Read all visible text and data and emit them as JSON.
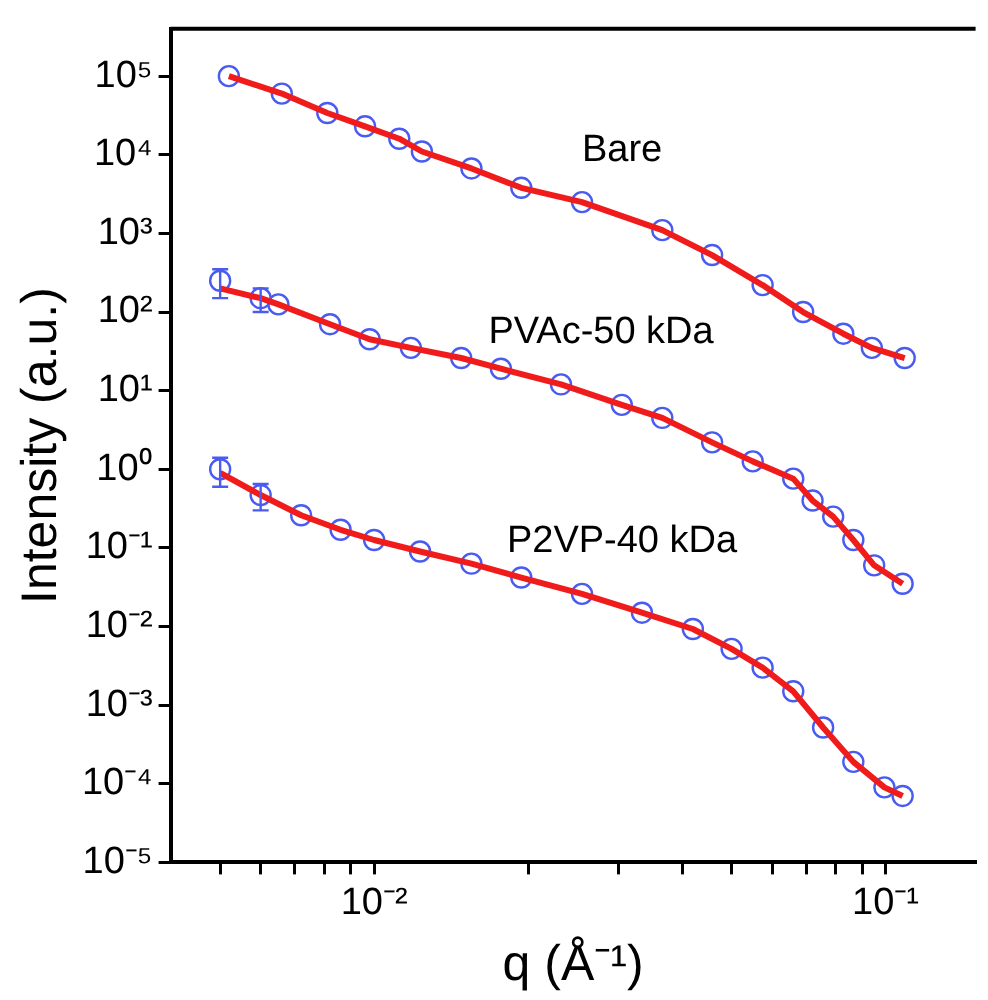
{
  "chart_data": {
    "type": "scatter",
    "xlabel": "q (Å⁻¹)",
    "ylabel": "Intensity (a.u.)",
    "log": "xy",
    "grid": false,
    "legend": false,
    "marker": "circle",
    "xlim": [
      0.004,
      0.15
    ],
    "ylim": [
      1e-05,
      400000
    ],
    "xticks": [
      {
        "value": 0.005,
        "label": null
      },
      {
        "value": 0.006,
        "label": null
      },
      {
        "value": 0.007,
        "label": null
      },
      {
        "value": 0.008,
        "label": null
      },
      {
        "value": 0.009,
        "label": null
      },
      {
        "value": 0.01,
        "label": "10⁻²"
      },
      {
        "value": 0.02,
        "label": null
      },
      {
        "value": 0.03,
        "label": null
      },
      {
        "value": 0.04,
        "label": null
      },
      {
        "value": 0.05,
        "label": null
      },
      {
        "value": 0.06,
        "label": null
      },
      {
        "value": 0.07,
        "label": null
      },
      {
        "value": 0.08,
        "label": null
      },
      {
        "value": 0.09,
        "label": null
      },
      {
        "value": 0.1,
        "label": "10⁻¹"
      }
    ],
    "yticks": [
      {
        "value": 1e-05,
        "label": "10⁻⁵"
      },
      {
        "value": 0.0001,
        "label": "10⁻⁴"
      },
      {
        "value": 0.001,
        "label": "10⁻³"
      },
      {
        "value": 0.01,
        "label": "10⁻²"
      },
      {
        "value": 0.1,
        "label": "10⁻¹"
      },
      {
        "value": 1,
        "label": "10⁰"
      },
      {
        "value": 10,
        "label": "10¹"
      },
      {
        "value": 100,
        "label": "10²"
      },
      {
        "value": 1000,
        "label": "10³"
      },
      {
        "value": 10000,
        "label": "10⁴"
      },
      {
        "value": 100000,
        "label": "10⁵"
      }
    ],
    "series": [
      {
        "name": "Bare",
        "color": "#4a5cf0",
        "x": [
          0.0052,
          0.0066,
          0.0081,
          0.0096,
          0.0112,
          0.0124,
          0.0155,
          0.0194,
          0.0255,
          0.0366,
          0.0458,
          0.0575,
          0.069,
          0.0827,
          0.094,
          0.109
        ],
        "values": [
          100000,
          60000,
          34000,
          23000,
          16000,
          11000,
          6700,
          3800,
          2500,
          1100,
          530,
          220,
          100,
          53,
          35,
          26
        ]
      },
      {
        "type": "line",
        "marker": "none",
        "color": "#f01c1c",
        "x": [
          0.0052,
          0.0066,
          0.0081,
          0.0096,
          0.0112,
          0.0124,
          0.0155,
          0.0194,
          0.0255,
          0.0366,
          0.0458,
          0.0575,
          0.069,
          0.0827,
          0.094,
          0.109
        ],
        "values": [
          100000,
          60000,
          34000,
          23000,
          16000,
          11000,
          6700,
          3800,
          2500,
          1100,
          530,
          220,
          100,
          53,
          35,
          26
        ]
      },
      {
        "name": "PVAc-50 kDa",
        "color": "#4a5cf0",
        "x": [
          0.005,
          0.006,
          0.0065,
          0.0082,
          0.0098,
          0.0118,
          0.0148,
          0.0177,
          0.0232,
          0.0305,
          0.0366,
          0.0458,
          0.055,
          0.066,
          0.072,
          0.079,
          0.0865,
          0.095,
          0.108
        ],
        "values": [
          250,
          150,
          125,
          70,
          45,
          35,
          26,
          19,
          12,
          6.6,
          4.5,
          2.2,
          1.26,
          0.76,
          0.4,
          0.25,
          0.126,
          0.06,
          0.035
        ],
        "errors": [
          [
            150,
            350
          ],
          [
            100,
            200
          ],
          null,
          null,
          null,
          null,
          null,
          null,
          null,
          null,
          null,
          null,
          null,
          null,
          null,
          null,
          null,
          null,
          null
        ]
      },
      {
        "type": "line",
        "marker": "none",
        "color": "#f01c1c",
        "x": [
          0.005,
          0.006,
          0.0065,
          0.0082,
          0.0098,
          0.0118,
          0.0148,
          0.0177,
          0.0232,
          0.0305,
          0.0366,
          0.0458,
          0.055,
          0.066,
          0.072,
          0.079,
          0.0865,
          0.095,
          0.108
        ],
        "values": [
          200,
          150,
          125,
          70,
          45,
          35,
          26,
          19,
          12,
          6.6,
          4.5,
          2.2,
          1.26,
          0.76,
          0.4,
          0.25,
          0.126,
          0.06,
          0.035
        ]
      },
      {
        "name": "P2VP-40 kDa",
        "color": "#4a5cf0",
        "x": [
          0.005,
          0.006,
          0.0072,
          0.0086,
          0.01,
          0.0123,
          0.0155,
          0.0194,
          0.0255,
          0.0334,
          0.042,
          0.05,
          0.0575,
          0.066,
          0.0755,
          0.0865,
          0.0995,
          0.108
        ],
        "values": [
          1,
          0.47,
          0.26,
          0.17,
          0.126,
          0.09,
          0.063,
          0.042,
          0.026,
          0.015,
          0.0093,
          0.0052,
          0.003,
          0.0015,
          0.00052,
          0.00019,
          9e-05,
          7e-05
        ],
        "errors": [
          [
            0.6,
            1.4
          ],
          [
            0.3,
            0.65
          ],
          null,
          null,
          null,
          null,
          null,
          null,
          null,
          null,
          null,
          null,
          null,
          null,
          null,
          null,
          null,
          null
        ]
      },
      {
        "type": "line",
        "marker": "none",
        "color": "#f01c1c",
        "x": [
          0.005,
          0.006,
          0.0072,
          0.0086,
          0.01,
          0.0123,
          0.0155,
          0.0194,
          0.0255,
          0.0334,
          0.042,
          0.05,
          0.0575,
          0.066,
          0.0755,
          0.0865,
          0.0995,
          0.108
        ],
        "values": [
          0.9,
          0.47,
          0.26,
          0.17,
          0.126,
          0.09,
          0.063,
          0.042,
          0.026,
          0.015,
          0.0093,
          0.0052,
          0.003,
          0.0015,
          0.00052,
          0.00019,
          9e-05,
          7e-05
        ]
      }
    ]
  }
}
